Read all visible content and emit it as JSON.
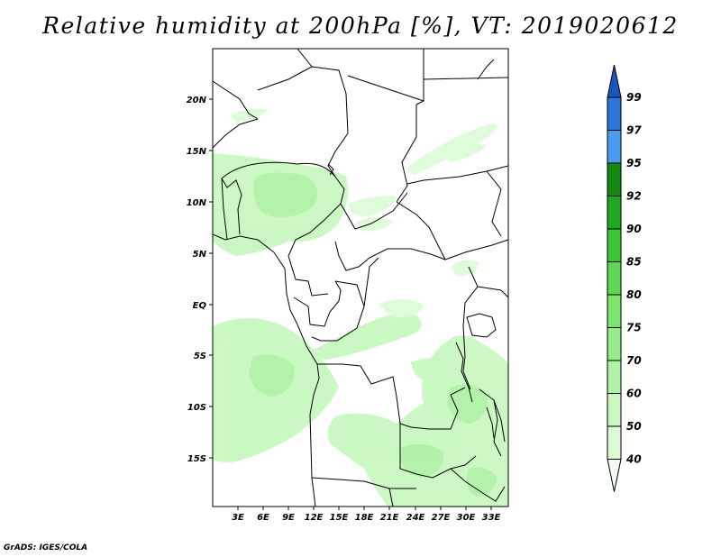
{
  "title": "Relative humidity at 200hPa [%], VT: 2019020612",
  "credit": "GrADS: IGES/COLA",
  "map": {
    "lat_labels": [
      "20N",
      "15N",
      "10N",
      "5N",
      "EQ",
      "5S",
      "10S",
      "15S"
    ],
    "lon_labels": [
      "3E",
      "6E",
      "9E",
      "12E",
      "15E",
      "18E",
      "21E",
      "24E",
      "27E",
      "30E",
      "33E"
    ]
  },
  "colorbar": {
    "levels": [
      "40",
      "50",
      "60",
      "70",
      "75",
      "80",
      "85",
      "90",
      "92",
      "95",
      "97",
      "99"
    ],
    "colors": [
      "#f0fff0",
      "#dcfcd6",
      "#c8f8c0",
      "#b0f2a6",
      "#96ec8a",
      "#7ce56e",
      "#5cd852",
      "#3cc436",
      "#20a820",
      "#108a10",
      "#4a9cf0",
      "#2a76dc",
      "#1a56c0"
    ]
  }
}
